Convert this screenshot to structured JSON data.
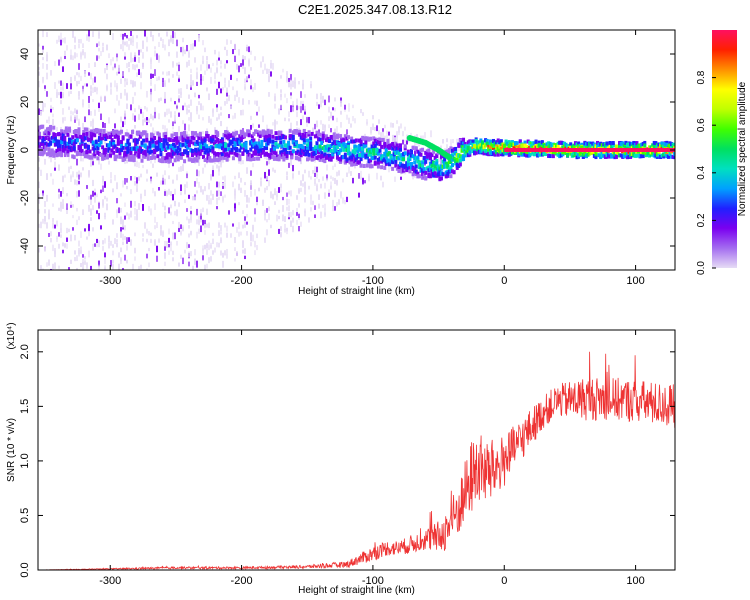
{
  "title": "C2E1.2025.347.08.13.R12",
  "chart_data": [
    {
      "type": "heatmap",
      "xlabel": "Height of straight line (km)",
      "ylabel": "Frequency (Hz)",
      "xlim": [
        -355,
        130
      ],
      "ylim": [
        -50,
        50
      ],
      "xticks": [
        -300,
        -200,
        -100,
        0,
        100
      ],
      "yticks": [
        -40,
        -20,
        0,
        20,
        40
      ],
      "colorbar": {
        "label": "Normalized spectral amplitude",
        "range": [
          0,
          1
        ],
        "ticks": [
          0.0,
          0.2,
          0.4,
          0.6,
          0.8
        ],
        "colors": [
          "#e6dcf5",
          "#a46df0",
          "#7a00f0",
          "#2020ff",
          "#00a0ff",
          "#00e0c0",
          "#00e060",
          "#40ff00",
          "#c0ff00",
          "#ffff00",
          "#ff9000",
          "#ff2000",
          "#ff1060"
        ]
      },
      "ridge": {
        "x": [
          -355,
          -300,
          -250,
          -200,
          -150,
          -120,
          -100,
          -80,
          -60,
          -45,
          -30,
          -20,
          -10,
          0,
          50,
          130
        ],
        "y": [
          4,
          2,
          1,
          2,
          2,
          0,
          -1,
          -3,
          -6,
          -7,
          0,
          2,
          1,
          1,
          0,
          0
        ],
        "peak_amplitude": [
          0.3,
          0.35,
          0.35,
          0.4,
          0.45,
          0.5,
          0.5,
          0.5,
          0.5,
          0.55,
          0.75,
          0.85,
          0.9,
          1.0,
          1.0,
          1.0
        ]
      },
      "branch": {
        "x": [
          -72,
          -60,
          -50,
          -42
        ],
        "y": [
          5,
          3,
          0,
          -3
        ]
      },
      "noise_floor": {
        "x": [
          -355,
          -300,
          -250,
          -200,
          -150,
          -100,
          -50,
          -30
        ],
        "spread_hz": [
          50,
          50,
          50,
          45,
          30,
          15,
          8,
          3
        ]
      }
    },
    {
      "type": "line",
      "xlabel": "Height of straight line (km)",
      "ylabel": "SNR (10 * v/v)",
      "y_multiplier": "(x10⁴)",
      "xlim": [
        -355,
        130
      ],
      "ylim": [
        0,
        2.2
      ],
      "xticks": [
        -300,
        -200,
        -100,
        0,
        100
      ],
      "yticks": [
        0.0,
        0.5,
        1.0,
        1.5,
        2.0
      ],
      "series": [
        {
          "color": "#ee3333",
          "x": [
            -355,
            -300,
            -250,
            -200,
            -150,
            -120,
            -100,
            -90,
            -80,
            -60,
            -50,
            -45,
            -40,
            -35,
            -30,
            -25,
            -20,
            -15,
            -10,
            -5,
            0,
            10,
            20,
            30,
            40,
            60,
            80,
            100,
            130
          ],
          "y": [
            0.0,
            0.01,
            0.02,
            0.02,
            0.03,
            0.05,
            0.15,
            0.2,
            0.2,
            0.28,
            0.3,
            0.35,
            0.45,
            0.55,
            0.7,
            0.85,
            0.95,
            0.9,
            0.9,
            0.95,
            1.0,
            1.15,
            1.3,
            1.45,
            1.55,
            1.57,
            1.57,
            1.55,
            1.5
          ],
          "noise": [
            0.0,
            0.005,
            0.01,
            0.01,
            0.015,
            0.03,
            0.07,
            0.07,
            0.07,
            0.1,
            0.15,
            0.18,
            0.22,
            0.25,
            0.3,
            0.35,
            0.35,
            0.3,
            0.3,
            0.25,
            0.25,
            0.2,
            0.18,
            0.15,
            0.15,
            0.2,
            0.2,
            0.2,
            0.2
          ]
        }
      ]
    }
  ]
}
